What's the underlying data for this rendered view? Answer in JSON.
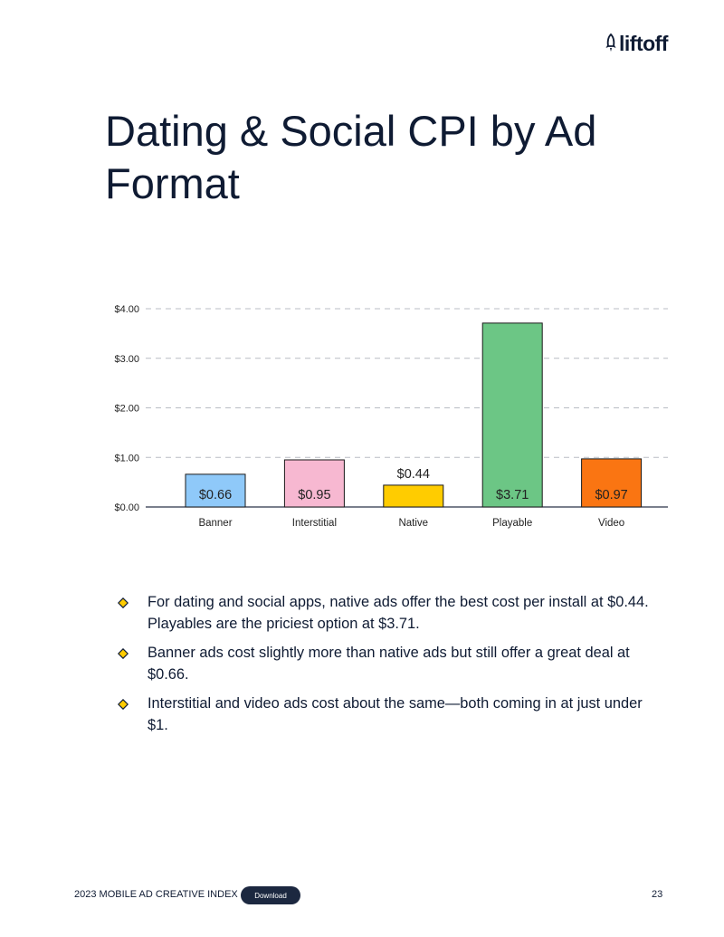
{
  "header": {
    "logo_text": "liftoff",
    "logo_icon": "rocket-icon"
  },
  "title": "Dating & Social CPI by Ad Format",
  "chart_data": {
    "type": "bar",
    "title": "",
    "xlabel": "",
    "ylabel": "",
    "categories": [
      "Banner",
      "Interstitial",
      "Native",
      "Playable",
      "Video"
    ],
    "values": [
      0.66,
      0.95,
      0.44,
      3.71,
      0.97
    ],
    "data_labels": [
      "$0.66",
      "$0.95",
      "$0.44",
      "$3.71",
      "$0.97"
    ],
    "bar_colors": [
      "#8fc9f9",
      "#f7b8d1",
      "#ffcc00",
      "#6cc685",
      "#fa7512"
    ],
    "yticks": [
      0,
      1,
      2,
      3,
      4
    ],
    "ytick_labels": [
      "$0.00",
      "$1.00",
      "$2.00",
      "$3.00",
      "$4.00"
    ],
    "ylim": [
      0,
      4
    ],
    "grid": true
  },
  "bullets": [
    {
      "text": "For dating and social apps, native ads offer the best cost per install at $0.44. Playables are the priciest option at $3.71."
    },
    {
      "text": "Banner ads cost slightly more than native ads but still offer a great deal at $0.66."
    },
    {
      "text": "Interstitial and video ads cost about the same—both coming in at just under $1."
    }
  ],
  "bullet_icon": "diamond-icon",
  "bullet_color": "#ffcc00",
  "footer": {
    "report_name": "2023 MOBILE AD CREATIVE INDEX",
    "download_label": "Download",
    "page_number": "23"
  }
}
